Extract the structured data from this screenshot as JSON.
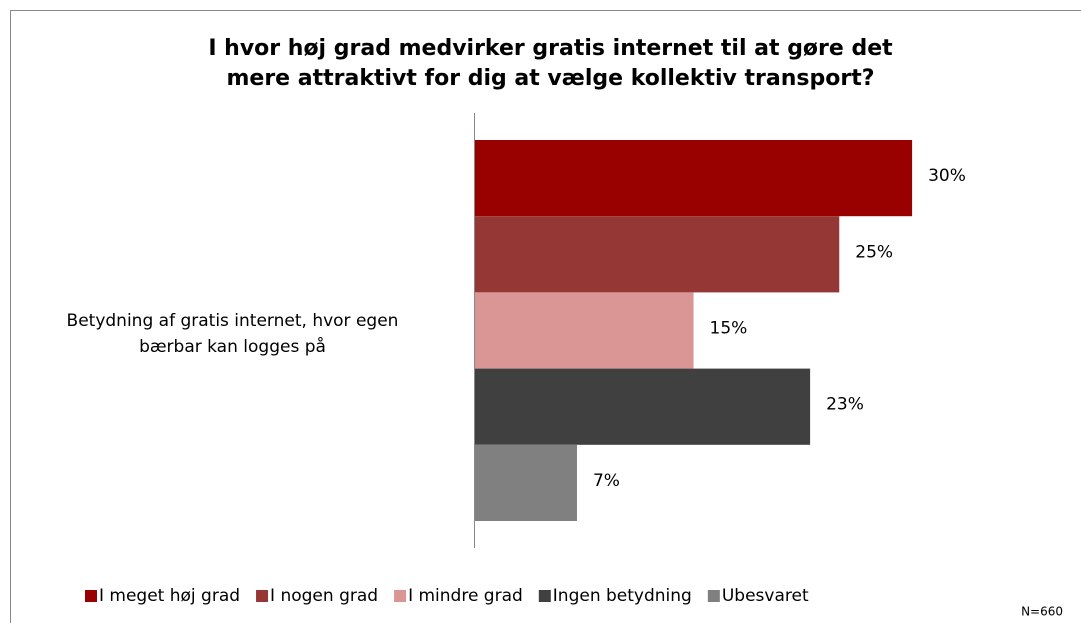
{
  "chart_data": {
    "type": "bar",
    "orientation": "horizontal",
    "title": "I hvor høj grad medvirker gratis internet til at gøre det\nmere attraktivt for dig at vælge kollektiv transport?",
    "categories": [
      "Betydning af gratis internet, hvor egen\nbærbar kan logges på"
    ],
    "series": [
      {
        "name": "I meget høj grad",
        "color": "#990000",
        "values": [
          30
        ],
        "value_labels": [
          "30%"
        ]
      },
      {
        "name": "I nogen grad",
        "color": "#953735",
        "values": [
          25
        ],
        "value_labels": [
          "25%"
        ]
      },
      {
        "name": "I mindre grad",
        "color": "#d99694",
        "values": [
          15
        ],
        "value_labels": [
          "15%"
        ]
      },
      {
        "name": "Ingen betydning",
        "color": "#404040",
        "values": [
          23
        ],
        "value_labels": [
          "23%"
        ]
      },
      {
        "name": "Ubesvaret",
        "color": "#808080",
        "values": [
          7
        ],
        "value_labels": [
          "7%"
        ]
      }
    ],
    "annotation": "N=660",
    "legend": "bottom"
  }
}
